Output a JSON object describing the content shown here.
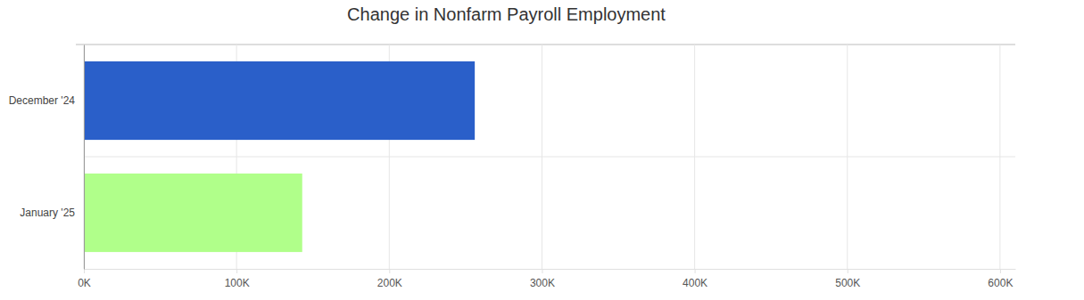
{
  "chart_data": {
    "type": "bar",
    "orientation": "horizontal",
    "title": "Change in Nonfarm Payroll Employment",
    "categories": [
      "December '24",
      "January '25"
    ],
    "values": [
      256000,
      143000
    ],
    "colors": [
      "#2a5fc9",
      "#b0ff8a"
    ],
    "xlim": [
      0,
      610000
    ],
    "xticks": [
      {
        "value": 0,
        "label": "0K"
      },
      {
        "value": 100000,
        "label": "100K"
      },
      {
        "value": 200000,
        "label": "200K"
      },
      {
        "value": 300000,
        "label": "300K"
      },
      {
        "value": 400000,
        "label": "400K"
      },
      {
        "value": 500000,
        "label": "500K"
      },
      {
        "value": 600000,
        "label": "600K"
      }
    ],
    "grid": true
  }
}
